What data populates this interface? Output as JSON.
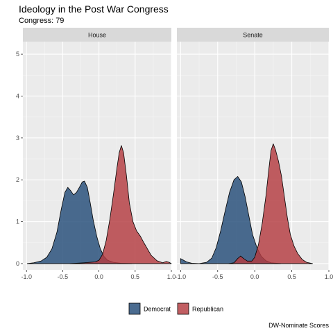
{
  "title": "Ideology in the Post War Congress",
  "subtitle": "Congress: 79",
  "caption": "DW-Nominate Scores",
  "legend": [
    {
      "label": "Democrat",
      "color": "#234c78"
    },
    {
      "label": "Republican",
      "color": "#b33b40"
    }
  ],
  "chart_data": {
    "type": "area",
    "facets": [
      "House",
      "Senate"
    ],
    "xlim": [
      -1.05,
      1.0
    ],
    "ylim": [
      -0.15,
      5.3
    ],
    "x_ticks": [
      -1.0,
      -0.5,
      0.0,
      0.5,
      1.0
    ],
    "x_tick_labels": [
      "-1.0",
      "-0.5",
      "0.0",
      "0.5",
      "1.0"
    ],
    "y_ticks": [
      0,
      1,
      2,
      3,
      4,
      5
    ],
    "y_tick_labels": [
      "0",
      "1",
      "2",
      "3",
      "4",
      "5"
    ],
    "grid": true,
    "legend_position": "bottom",
    "panels": [
      {
        "facet": "House",
        "series": [
          {
            "name": "Democrat",
            "points": [
              [
                -0.99,
                0.0
              ],
              [
                -0.9,
                0.02
              ],
              [
                -0.8,
                0.06
              ],
              [
                -0.72,
                0.15
              ],
              [
                -0.65,
                0.35
              ],
              [
                -0.58,
                0.75
              ],
              [
                -0.52,
                1.3
              ],
              [
                -0.47,
                1.7
              ],
              [
                -0.43,
                1.82
              ],
              [
                -0.39,
                1.74
              ],
              [
                -0.35,
                1.64
              ],
              [
                -0.31,
                1.7
              ],
              [
                -0.27,
                1.82
              ],
              [
                -0.23,
                1.95
              ],
              [
                -0.2,
                1.97
              ],
              [
                -0.16,
                1.82
              ],
              [
                -0.12,
                1.45
              ],
              [
                -0.08,
                1.05
              ],
              [
                -0.03,
                0.65
              ],
              [
                0.02,
                0.35
              ],
              [
                0.07,
                0.17
              ],
              [
                0.12,
                0.08
              ],
              [
                0.2,
                0.03
              ],
              [
                0.3,
                0.01
              ],
              [
                0.45,
                0.0
              ]
            ]
          },
          {
            "name": "Republican",
            "points": [
              [
                -0.4,
                0.0
              ],
              [
                -0.2,
                0.02
              ],
              [
                -0.05,
                0.04
              ],
              [
                0.0,
                0.08
              ],
              [
                0.05,
                0.22
              ],
              [
                0.1,
                0.55
              ],
              [
                0.15,
                1.05
              ],
              [
                0.2,
                1.65
              ],
              [
                0.25,
                2.3
              ],
              [
                0.28,
                2.65
              ],
              [
                0.31,
                2.82
              ],
              [
                0.34,
                2.65
              ],
              [
                0.38,
                2.1
              ],
              [
                0.42,
                1.45
              ],
              [
                0.47,
                1.0
              ],
              [
                0.52,
                0.78
              ],
              [
                0.57,
                0.66
              ],
              [
                0.62,
                0.5
              ],
              [
                0.67,
                0.35
              ],
              [
                0.72,
                0.2
              ],
              [
                0.8,
                0.07
              ],
              [
                0.88,
                0.02
              ],
              [
                0.93,
                0.05
              ],
              [
                0.97,
                0.03
              ],
              [
                1.0,
                0.0
              ]
            ]
          }
        ]
      },
      {
        "facet": "Senate",
        "series": [
          {
            "name": "Democrat",
            "points": [
              [
                -1.0,
                0.12
              ],
              [
                -0.96,
                0.08
              ],
              [
                -0.92,
                0.04
              ],
              [
                -0.85,
                0.01
              ],
              [
                -0.75,
                0.0
              ],
              [
                -0.65,
                0.03
              ],
              [
                -0.58,
                0.13
              ],
              [
                -0.52,
                0.38
              ],
              [
                -0.46,
                0.78
              ],
              [
                -0.4,
                1.25
              ],
              [
                -0.34,
                1.7
              ],
              [
                -0.28,
                2.0
              ],
              [
                -0.23,
                2.08
              ],
              [
                -0.18,
                1.95
              ],
              [
                -0.13,
                1.6
              ],
              [
                -0.08,
                1.15
              ],
              [
                -0.03,
                0.7
              ],
              [
                0.03,
                0.38
              ],
              [
                0.09,
                0.17
              ],
              [
                0.15,
                0.07
              ],
              [
                0.22,
                0.02
              ],
              [
                0.35,
                0.0
              ]
            ]
          },
          {
            "name": "Republican",
            "points": [
              [
                -0.35,
                0.0
              ],
              [
                -0.28,
                0.02
              ],
              [
                -0.23,
                0.12
              ],
              [
                -0.19,
                0.18
              ],
              [
                -0.15,
                0.12
              ],
              [
                -0.1,
                0.06
              ],
              [
                -0.04,
                0.06
              ],
              [
                0.0,
                0.15
              ],
              [
                0.05,
                0.45
              ],
              [
                0.1,
                0.95
              ],
              [
                0.15,
                1.6
              ],
              [
                0.19,
                2.25
              ],
              [
                0.22,
                2.7
              ],
              [
                0.25,
                2.86
              ],
              [
                0.28,
                2.72
              ],
              [
                0.32,
                2.45
              ],
              [
                0.36,
                2.1
              ],
              [
                0.4,
                1.6
              ],
              [
                0.44,
                1.1
              ],
              [
                0.48,
                0.7
              ],
              [
                0.53,
                0.42
              ],
              [
                0.58,
                0.24
              ],
              [
                0.64,
                0.1
              ],
              [
                0.7,
                0.03
              ],
              [
                0.78,
                0.0
              ]
            ]
          }
        ]
      }
    ]
  }
}
